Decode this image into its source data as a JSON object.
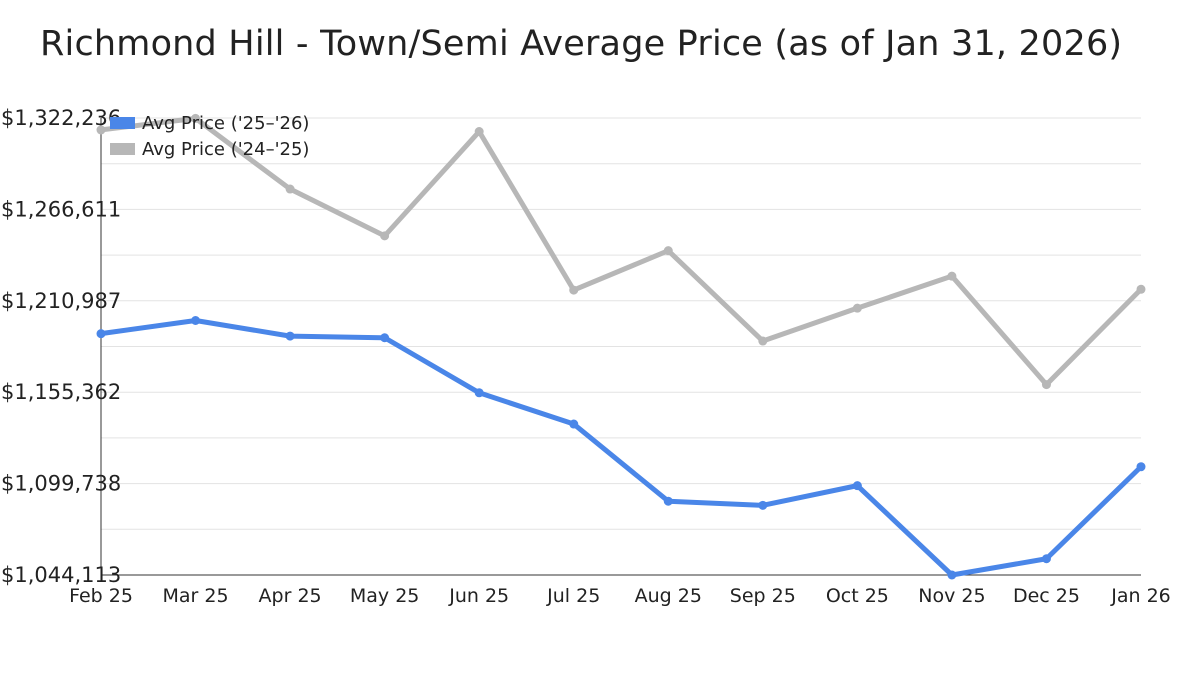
{
  "chart_data": {
    "type": "line",
    "title": "Richmond Hill - Town/Semi Average Price (as of Jan 31, 2026)",
    "xlabel": "",
    "ylabel": "",
    "categories": [
      "Feb 25",
      "Mar 25",
      "Apr 25",
      "May 25",
      "Jun 25",
      "Jul 25",
      "Aug 25",
      "Sep 25",
      "Oct 25",
      "Nov 25",
      "Dec 25",
      "Jan 26"
    ],
    "y_ticks": [
      "$1,044,113",
      "$1,099,738",
      "$1,155,362",
      "$1,210,987",
      "$1,266,611",
      "$1,322,236"
    ],
    "ylim": [
      1044113,
      1322236
    ],
    "grid": true,
    "legend_position": "top-left",
    "series": [
      {
        "name": "Avg Price ('25–'26)",
        "color": "#4a86e8",
        "values": [
          1191000,
          1199000,
          1189500,
          1188500,
          1155000,
          1136000,
          1089000,
          1086500,
          1098500,
          1044113,
          1054000,
          1110000
        ]
      },
      {
        "name": "Avg Price ('24–'25)",
        "color": "#b7b7b7",
        "values": [
          1315000,
          1322000,
          1279000,
          1250500,
          1314000,
          1217500,
          1241500,
          1186500,
          1206500,
          1226000,
          1160000,
          1218000
        ]
      }
    ]
  }
}
